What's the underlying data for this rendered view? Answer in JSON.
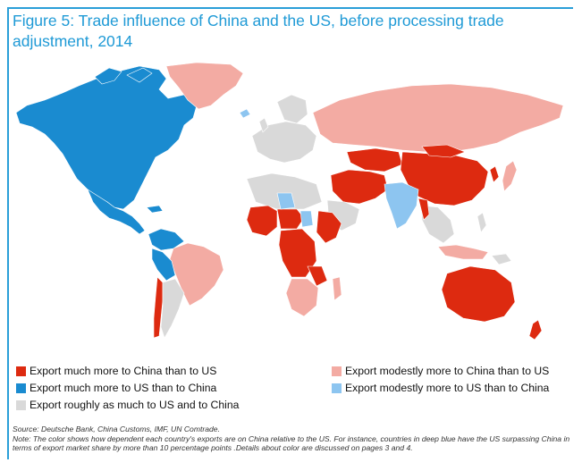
{
  "title": "Figure 5: Trade influence of China and the US, before processing trade adjustment, 2014",
  "colors": {
    "china_much": "#dd2a10",
    "china_modest": "#f3aba3",
    "us_much": "#1a8bd0",
    "us_modest": "#8dc5f0",
    "roughly_equal": "#d9d9d9",
    "accent": "#1f9ad6"
  },
  "legend": {
    "china_much": "Export much more to China than to US",
    "us_much": "Export much more to US than to China",
    "roughly": "Export roughly as much to US and to China",
    "china_modest": "Export modestly more to China than to US",
    "us_modest": "Export modestly more to US than to China"
  },
  "source": "Source: Deutsche Bank, China Customs, IMF, UN Comtrade.",
  "note": "Note: The color shows how dependent each country's exports are on China relative to the US. For instance, countries in deep blue have the US surpassing China in terms of export market share by more than 10 percentage points .Details about color are discussed on pages 3 and 4."
}
